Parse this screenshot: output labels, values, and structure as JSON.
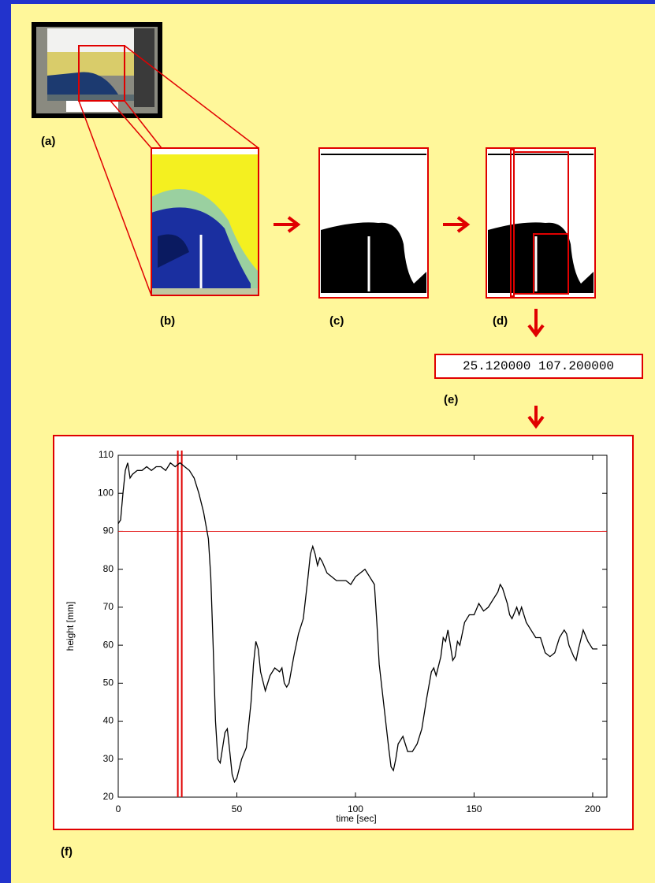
{
  "labels": {
    "a": "(a)",
    "b": "(b)",
    "c": "(c)",
    "d": "(d)",
    "e": "(e)",
    "f": "(f)"
  },
  "readout": "25.120000 107.200000",
  "chart_data": {
    "type": "line",
    "xlabel": "time [sec]",
    "ylabel": "height [mm]",
    "x": [
      0,
      1,
      2,
      3,
      4,
      5,
      6,
      8,
      10,
      12,
      14,
      16,
      18,
      20,
      22,
      24,
      26,
      28,
      30,
      32,
      34,
      36,
      38,
      39,
      40,
      41,
      42,
      43,
      44,
      45,
      46,
      47,
      48,
      49,
      50,
      52,
      54,
      56,
      57,
      58,
      59,
      60,
      62,
      64,
      66,
      68,
      69,
      70,
      71,
      72,
      74,
      76,
      78,
      80,
      81,
      82,
      83,
      84,
      85,
      86,
      88,
      90,
      92,
      94,
      96,
      98,
      100,
      102,
      104,
      105,
      106,
      107,
      108,
      109,
      110,
      112,
      114,
      115,
      116,
      117,
      118,
      120,
      121,
      122,
      124,
      126,
      128,
      130,
      132,
      133,
      134,
      136,
      137,
      138,
      139,
      140,
      141,
      142,
      143,
      144,
      146,
      148,
      150,
      152,
      153,
      154,
      156,
      158,
      160,
      161,
      162,
      164,
      165,
      166,
      168,
      169,
      170,
      172,
      174,
      176,
      178,
      180,
      182,
      184,
      186,
      188,
      189,
      190,
      192,
      193,
      194,
      196,
      198,
      200,
      202
    ],
    "values": [
      92,
      93,
      100,
      106,
      108,
      104,
      105,
      106,
      106,
      107,
      106,
      107,
      107,
      106,
      108,
      107,
      108,
      107,
      106,
      104,
      100,
      95,
      88,
      78,
      60,
      40,
      30,
      29,
      33,
      37,
      38,
      32,
      26,
      24,
      25,
      30,
      33,
      45,
      55,
      61,
      59,
      53,
      48,
      52,
      54,
      53,
      54,
      50,
      49,
      50,
      57,
      63,
      67,
      78,
      84,
      86,
      84,
      81,
      83,
      82,
      79,
      78,
      77,
      77,
      77,
      76,
      78,
      79,
      80,
      79,
      78,
      77,
      76,
      66,
      55,
      44,
      33,
      28,
      27,
      30,
      34,
      36,
      34,
      32,
      32,
      34,
      38,
      46,
      53,
      54,
      52,
      57,
      62,
      61,
      64,
      60,
      56,
      57,
      61,
      60,
      66,
      68,
      68,
      71,
      70,
      69,
      70,
      72,
      74,
      76,
      75,
      71,
      68,
      67,
      70,
      68,
      70,
      66,
      64,
      62,
      62,
      58,
      57,
      58,
      62,
      64,
      63,
      60,
      57,
      56,
      59,
      64,
      61,
      59,
      59
    ],
    "color": "#000000",
    "xlim": [
      0,
      206
    ],
    "ylim": [
      20,
      110
    ],
    "xticks": [
      0,
      50,
      100,
      150,
      200
    ],
    "yticks": [
      20,
      30,
      40,
      50,
      60,
      70,
      80,
      90,
      100,
      110
    ],
    "threshold": 90,
    "threshold_color": "#e00000",
    "marker_time": 25.12,
    "marker_color": "#e00000"
  }
}
